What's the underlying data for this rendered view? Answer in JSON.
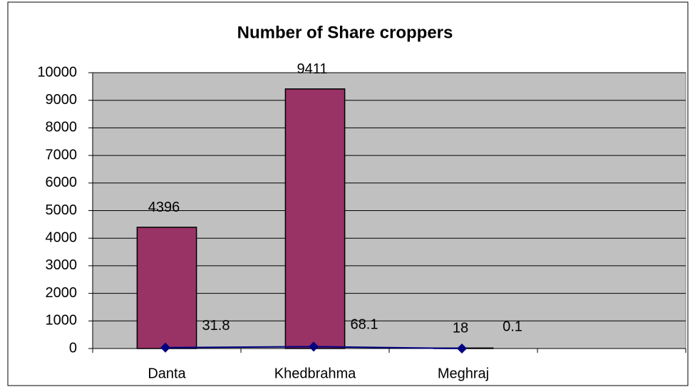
{
  "chart_data": {
    "type": "bar",
    "title": "Number of Share croppers",
    "categories": [
      "Danta",
      "Khedbrahma",
      "Meghraj",
      null
    ],
    "series": [
      {
        "type": "bar",
        "color": "#993366",
        "values": [
          4396,
          9411,
          18,
          null
        ]
      },
      {
        "type": "line",
        "color": "#000080",
        "values": [
          31.8,
          68.1,
          0.1,
          null
        ]
      }
    ],
    "ylim": [
      0,
      10000
    ],
    "yticks": [
      0,
      1000,
      2000,
      3000,
      4000,
      5000,
      6000,
      7000,
      8000,
      9000,
      10000
    ],
    "grid": true,
    "plot_background": "#c0c0c0"
  }
}
